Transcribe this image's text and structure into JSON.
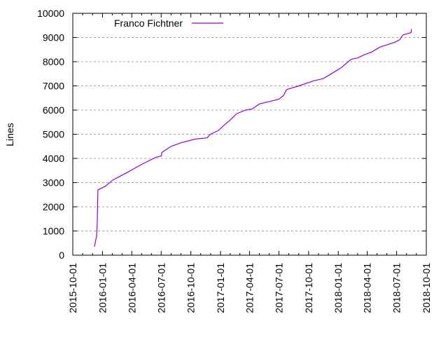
{
  "chart_data": {
    "type": "line",
    "title": "",
    "xlabel": "",
    "ylabel": "Lines",
    "ylim": [
      0,
      10000
    ],
    "xlim": [
      "2015-10-01",
      "2018-10-01"
    ],
    "grid": {
      "y": true,
      "x": false,
      "style": "dashed"
    },
    "legend_position": "top-left-inside",
    "y_ticks": [
      "0",
      "1000",
      "2000",
      "3000",
      "4000",
      "5000",
      "6000",
      "7000",
      "8000",
      "9000",
      "10000"
    ],
    "x_ticks": [
      "2015-10-01",
      "2016-01-01",
      "2016-04-01",
      "2016-07-01",
      "2016-10-01",
      "2017-01-01",
      "2017-04-01",
      "2017-07-01",
      "2017-10-01",
      "2018-01-01",
      "2018-04-01",
      "2018-07-01",
      "2018-10-01"
    ],
    "series": [
      {
        "name": "Franco Fichtner",
        "color": "#9400d3",
        "points": [
          [
            "2015-12-07",
            350
          ],
          [
            "2015-12-10",
            550
          ],
          [
            "2015-12-14",
            800
          ],
          [
            "2015-12-16",
            1400
          ],
          [
            "2015-12-18",
            2700
          ],
          [
            "2016-01-10",
            2850
          ],
          [
            "2016-02-01",
            3100
          ],
          [
            "2016-03-15",
            3400
          ],
          [
            "2016-05-01",
            3750
          ],
          [
            "2016-06-15",
            4050
          ],
          [
            "2016-07-01",
            4100
          ],
          [
            "2016-07-03",
            4250
          ],
          [
            "2016-08-01",
            4500
          ],
          [
            "2016-09-01",
            4650
          ],
          [
            "2016-10-15",
            4800
          ],
          [
            "2016-11-20",
            4850
          ],
          [
            "2016-12-01",
            5000
          ],
          [
            "2016-12-25",
            5150
          ],
          [
            "2017-01-10",
            5350
          ],
          [
            "2017-02-01",
            5600
          ],
          [
            "2017-02-20",
            5850
          ],
          [
            "2017-03-20",
            6000
          ],
          [
            "2017-04-10",
            6050
          ],
          [
            "2017-05-01",
            6250
          ],
          [
            "2017-06-01",
            6350
          ],
          [
            "2017-07-01",
            6450
          ],
          [
            "2017-07-15",
            6600
          ],
          [
            "2017-07-25",
            6850
          ],
          [
            "2017-09-01",
            7000
          ],
          [
            "2017-10-15",
            7200
          ],
          [
            "2017-11-15",
            7300
          ],
          [
            "2017-12-10",
            7500
          ],
          [
            "2018-01-10",
            7750
          ],
          [
            "2018-02-10",
            8100
          ],
          [
            "2018-03-01",
            8150
          ],
          [
            "2018-03-25",
            8300
          ],
          [
            "2018-04-15",
            8400
          ],
          [
            "2018-05-10",
            8600
          ],
          [
            "2018-06-01",
            8700
          ],
          [
            "2018-06-25",
            8800
          ],
          [
            "2018-07-10",
            8900
          ],
          [
            "2018-07-20",
            9100
          ],
          [
            "2018-08-01",
            9150
          ],
          [
            "2018-08-15",
            9200
          ],
          [
            "2018-08-16",
            9350
          ]
        ]
      }
    ]
  }
}
